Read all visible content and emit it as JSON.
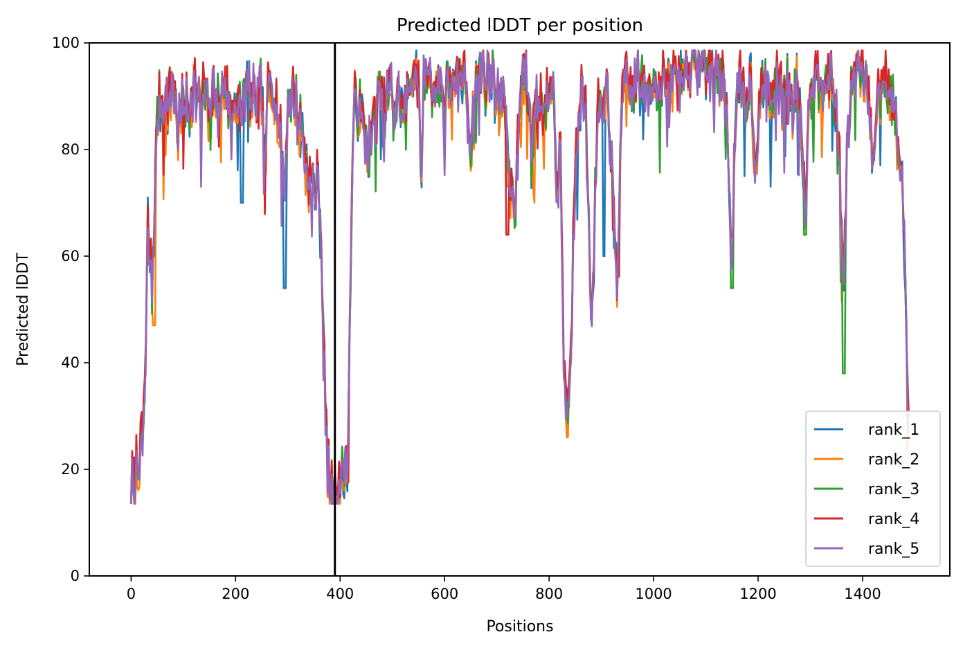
{
  "chart_data": {
    "type": "line",
    "title": "Predicted lDDT per position",
    "xlabel": "Positions",
    "ylabel": "Predicted lDDT",
    "xlim": [
      -80,
      1567
    ],
    "ylim": [
      0,
      100
    ],
    "xticks": [
      0,
      200,
      400,
      600,
      800,
      1000,
      1200,
      1400
    ],
    "yticks": [
      0,
      20,
      40,
      60,
      80,
      100
    ],
    "grid": false,
    "legend_position": "lower-right",
    "vline": 390,
    "x_max": 1488,
    "colors": {
      "rank_1": "#1f77b4",
      "rank_2": "#ff7f0e",
      "rank_3": "#2ca02c",
      "rank_4": "#d62728",
      "rank_5": "#9467bd"
    },
    "base_profile": [
      [
        0,
        17
      ],
      [
        8,
        19
      ],
      [
        15,
        22
      ],
      [
        22,
        25
      ],
      [
        28,
        40
      ],
      [
        32,
        66
      ],
      [
        36,
        60
      ],
      [
        40,
        55
      ],
      [
        44,
        65
      ],
      [
        50,
        88
      ],
      [
        60,
        90
      ],
      [
        70,
        88
      ],
      [
        80,
        92
      ],
      [
        90,
        84
      ],
      [
        100,
        89
      ],
      [
        110,
        86
      ],
      [
        120,
        93
      ],
      [
        130,
        88
      ],
      [
        140,
        91
      ],
      [
        150,
        85
      ],
      [
        160,
        92
      ],
      [
        170,
        88
      ],
      [
        180,
        93
      ],
      [
        190,
        85
      ],
      [
        200,
        90
      ],
      [
        210,
        86
      ],
      [
        220,
        92
      ],
      [
        230,
        90
      ],
      [
        240,
        88
      ],
      [
        250,
        91
      ],
      [
        256,
        76
      ],
      [
        262,
        90
      ],
      [
        270,
        92
      ],
      [
        280,
        88
      ],
      [
        288,
        78
      ],
      [
        294,
        74
      ],
      [
        300,
        88
      ],
      [
        310,
        90
      ],
      [
        320,
        86
      ],
      [
        330,
        82
      ],
      [
        340,
        74
      ],
      [
        350,
        73
      ],
      [
        360,
        73
      ],
      [
        366,
        55
      ],
      [
        372,
        30
      ],
      [
        378,
        18
      ],
      [
        385,
        16
      ],
      [
        395,
        17
      ],
      [
        405,
        18
      ],
      [
        415,
        22
      ],
      [
        422,
        70
      ],
      [
        428,
        90
      ],
      [
        435,
        88
      ],
      [
        445,
        84
      ],
      [
        455,
        80
      ],
      [
        465,
        86
      ],
      [
        475,
        90
      ],
      [
        485,
        86
      ],
      [
        495,
        92
      ],
      [
        505,
        88
      ],
      [
        515,
        90
      ],
      [
        525,
        86
      ],
      [
        535,
        92
      ],
      [
        545,
        96
      ],
      [
        550,
        90
      ],
      [
        555,
        73
      ],
      [
        560,
        92
      ],
      [
        570,
        95
      ],
      [
        580,
        90
      ],
      [
        590,
        93
      ],
      [
        600,
        88
      ],
      [
        610,
        94
      ],
      [
        620,
        90
      ],
      [
        630,
        94
      ],
      [
        640,
        92
      ],
      [
        650,
        80
      ],
      [
        660,
        92
      ],
      [
        670,
        95
      ],
      [
        680,
        92
      ],
      [
        690,
        94
      ],
      [
        700,
        90
      ],
      [
        710,
        92
      ],
      [
        720,
        82
      ],
      [
        728,
        70
      ],
      [
        735,
        68
      ],
      [
        742,
        85
      ],
      [
        750,
        95
      ],
      [
        760,
        90
      ],
      [
        766,
        78
      ],
      [
        772,
        88
      ],
      [
        780,
        90
      ],
      [
        790,
        86
      ],
      [
        800,
        92
      ],
      [
        810,
        90
      ],
      [
        815,
        70
      ],
      [
        822,
        80
      ],
      [
        828,
        40
      ],
      [
        835,
        30
      ],
      [
        842,
        40
      ],
      [
        848,
        72
      ],
      [
        855,
        88
      ],
      [
        862,
        90
      ],
      [
        870,
        88
      ],
      [
        878,
        60
      ],
      [
        882,
        45
      ],
      [
        888,
        70
      ],
      [
        895,
        90
      ],
      [
        905,
        84
      ],
      [
        912,
        92
      ],
      [
        920,
        76
      ],
      [
        930,
        52
      ],
      [
        938,
        88
      ],
      [
        950,
        92
      ],
      [
        960,
        90
      ],
      [
        970,
        94
      ],
      [
        980,
        90
      ],
      [
        990,
        92
      ],
      [
        1000,
        94
      ],
      [
        1010,
        90
      ],
      [
        1020,
        94
      ],
      [
        1030,
        91
      ],
      [
        1040,
        95
      ],
      [
        1050,
        93
      ],
      [
        1060,
        96
      ],
      [
        1070,
        95
      ],
      [
        1080,
        97
      ],
      [
        1090,
        96
      ],
      [
        1100,
        95
      ],
      [
        1110,
        96
      ],
      [
        1120,
        93
      ],
      [
        1130,
        94
      ],
      [
        1140,
        88
      ],
      [
        1146,
        70
      ],
      [
        1150,
        58
      ],
      [
        1156,
        84
      ],
      [
        1165,
        92
      ],
      [
        1175,
        88
      ],
      [
        1185,
        94
      ],
      [
        1195,
        78
      ],
      [
        1205,
        90
      ],
      [
        1215,
        92
      ],
      [
        1225,
        88
      ],
      [
        1235,
        93
      ],
      [
        1245,
        90
      ],
      [
        1255,
        92
      ],
      [
        1265,
        88
      ],
      [
        1275,
        92
      ],
      [
        1283,
        85
      ],
      [
        1290,
        70
      ],
      [
        1295,
        82
      ],
      [
        1300,
        92
      ],
      [
        1310,
        94
      ],
      [
        1320,
        92
      ],
      [
        1330,
        95
      ],
      [
        1340,
        92
      ],
      [
        1350,
        88
      ],
      [
        1358,
        70
      ],
      [
        1364,
        55
      ],
      [
        1370,
        80
      ],
      [
        1380,
        92
      ],
      [
        1390,
        95
      ],
      [
        1400,
        94
      ],
      [
        1410,
        92
      ],
      [
        1420,
        78
      ],
      [
        1430,
        90
      ],
      [
        1440,
        94
      ],
      [
        1450,
        92
      ],
      [
        1460,
        88
      ],
      [
        1468,
        80
      ],
      [
        1476,
        74
      ],
      [
        1482,
        55
      ],
      [
        1488,
        28
      ]
    ],
    "series": [
      {
        "name": "rank_1",
        "offset": 0.0,
        "seed": 11,
        "noise": 3.0
      },
      {
        "name": "rank_2",
        "offset": -0.5,
        "seed": 23,
        "noise": 3.0
      },
      {
        "name": "rank_3",
        "offset": 0.4,
        "seed": 37,
        "noise": 2.8
      },
      {
        "name": "rank_4",
        "offset": 1.3,
        "seed": 51,
        "noise": 2.8
      },
      {
        "name": "rank_5",
        "offset": 0.0,
        "seed": 67,
        "noise": 3.0
      }
    ],
    "dips": [
      {
        "series": "rank_1",
        "x": 212,
        "y": 70
      },
      {
        "series": "rank_1",
        "x": 294,
        "y": 54
      },
      {
        "series": "rank_1",
        "x": 905,
        "y": 60
      },
      {
        "series": "rank_2",
        "x": 835,
        "y": 26
      },
      {
        "series": "rank_2",
        "x": 44,
        "y": 47
      },
      {
        "series": "rank_3",
        "x": 1364,
        "y": 38
      },
      {
        "series": "rank_3",
        "x": 1150,
        "y": 54
      },
      {
        "series": "rank_3",
        "x": 1290,
        "y": 64
      },
      {
        "series": "rank_4",
        "x": 720,
        "y": 64
      }
    ]
  }
}
